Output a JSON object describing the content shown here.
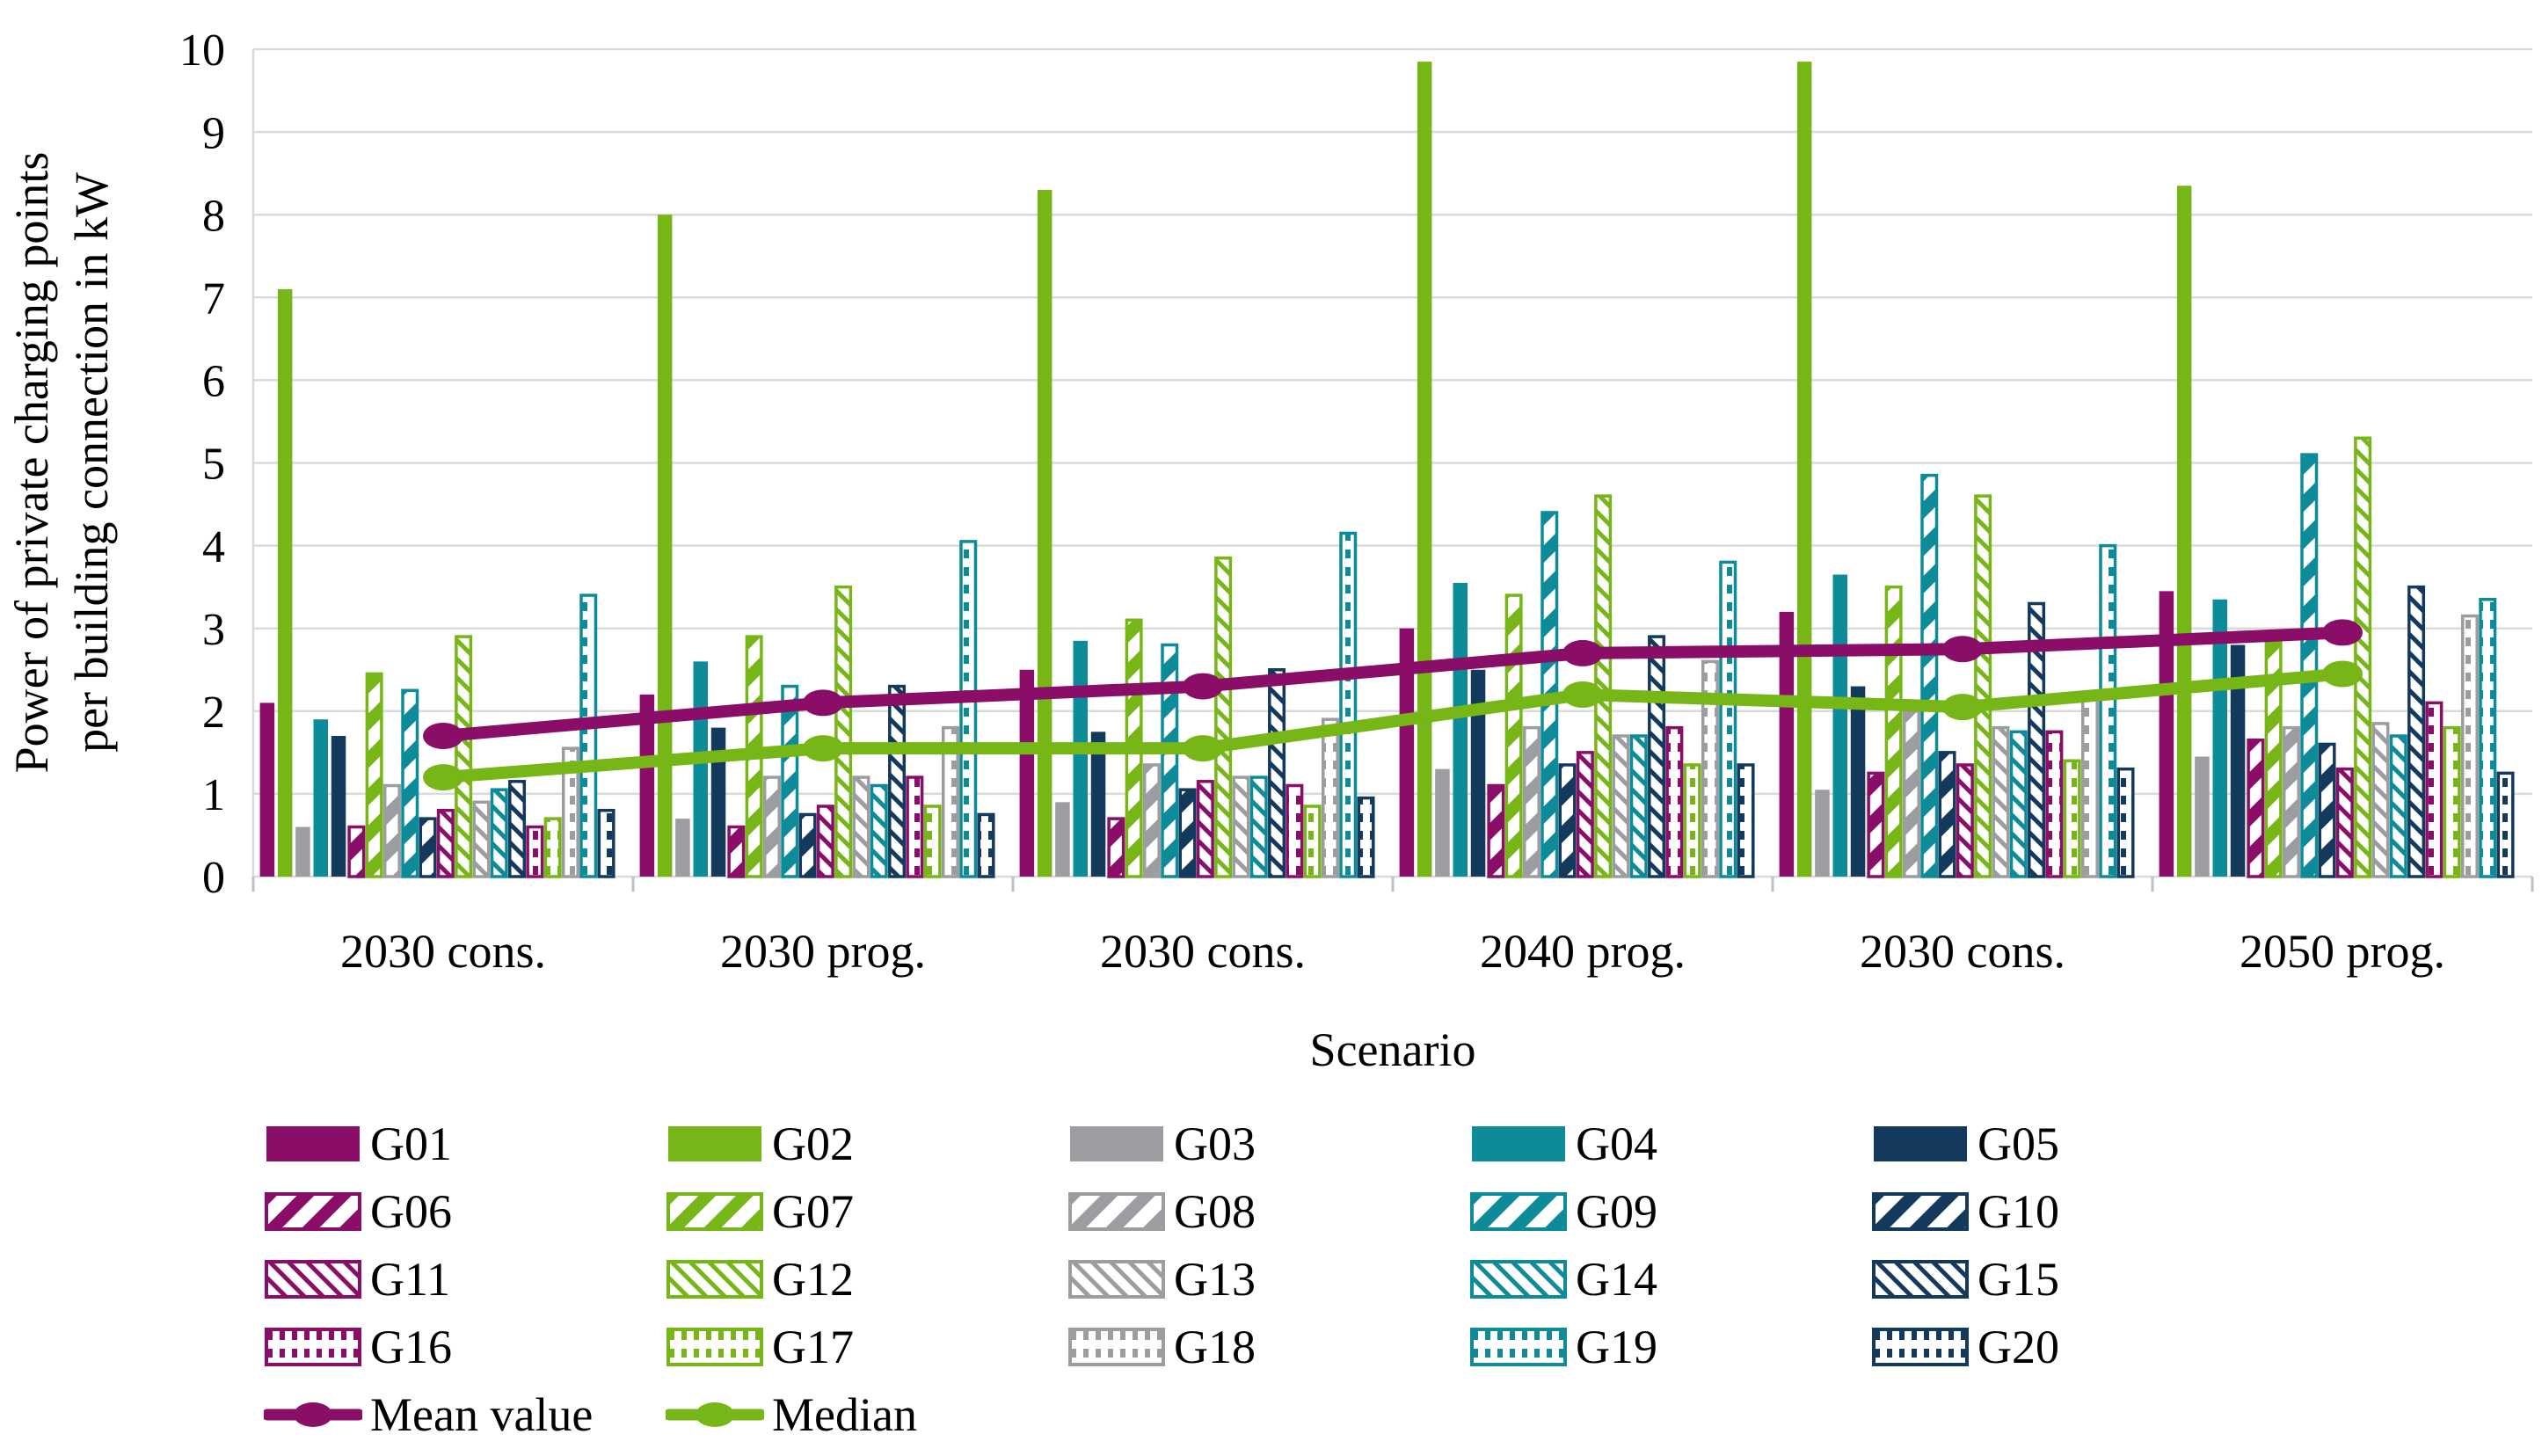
{
  "page": {
    "background": "#FFFFFF"
  },
  "colors": {
    "purple": "#8A0E67",
    "green": "#76B617",
    "gray": "#9B9DA0",
    "teal": "#0E8B99",
    "navy": "#133A5C",
    "grid": "#DADADA",
    "axis": "#BFBFBF",
    "text": "#000000"
  },
  "chart_data": {
    "type": "bar",
    "title": "",
    "xlabel": "Scenario",
    "ylabel_lines": [
      "Power of private charging points",
      "per building connection in kW"
    ],
    "ylim": [
      0,
      10
    ],
    "ytick_step": 1,
    "yticks": [
      0,
      1,
      2,
      3,
      4,
      5,
      6,
      7,
      8,
      9,
      10
    ],
    "grid": true,
    "legend_position": "bottom",
    "categories": [
      "2030 cons.",
      "2030 prog.",
      "2030 cons.",
      "2040 prog.",
      "2030 cons.",
      "2050 prog."
    ],
    "series": [
      {
        "name": "G01",
        "color": "purple",
        "pattern": "solid",
        "values": [
          2.1,
          2.2,
          2.5,
          3.0,
          3.2,
          3.45
        ]
      },
      {
        "name": "G02",
        "color": "green",
        "pattern": "solid",
        "values": [
          7.1,
          8.0,
          8.3,
          9.85,
          9.85,
          8.35
        ]
      },
      {
        "name": "G03",
        "color": "gray",
        "pattern": "solid",
        "values": [
          0.6,
          0.7,
          0.9,
          1.3,
          1.05,
          1.45
        ]
      },
      {
        "name": "G04",
        "color": "teal",
        "pattern": "solid",
        "values": [
          1.9,
          2.6,
          2.85,
          3.55,
          3.65,
          3.35
        ]
      },
      {
        "name": "G05",
        "color": "navy",
        "pattern": "solid",
        "values": [
          1.7,
          1.8,
          1.75,
          2.5,
          2.3,
          2.8
        ]
      },
      {
        "name": "G06",
        "color": "purple",
        "pattern": "hatch",
        "values": [
          0.6,
          0.6,
          0.7,
          1.1,
          1.25,
          1.65
        ]
      },
      {
        "name": "G07",
        "color": "green",
        "pattern": "hatch",
        "values": [
          2.45,
          2.9,
          3.1,
          3.4,
          3.5,
          2.85
        ]
      },
      {
        "name": "G08",
        "color": "gray",
        "pattern": "hatch",
        "values": [
          1.1,
          1.2,
          1.35,
          1.8,
          2.0,
          1.8
        ]
      },
      {
        "name": "G09",
        "color": "teal",
        "pattern": "hatch",
        "values": [
          2.25,
          2.3,
          2.8,
          4.4,
          4.85,
          5.1
        ]
      },
      {
        "name": "G10",
        "color": "navy",
        "pattern": "hatch",
        "values": [
          0.7,
          0.75,
          1.05,
          1.35,
          1.5,
          1.6
        ]
      },
      {
        "name": "G11",
        "color": "purple",
        "pattern": "backdiag",
        "values": [
          0.8,
          0.85,
          1.15,
          1.5,
          1.35,
          1.3
        ]
      },
      {
        "name": "G12",
        "color": "green",
        "pattern": "backdiag",
        "values": [
          2.9,
          3.5,
          3.85,
          4.6,
          4.6,
          5.3
        ]
      },
      {
        "name": "G13",
        "color": "gray",
        "pattern": "backdiag",
        "values": [
          0.9,
          1.2,
          1.2,
          1.7,
          1.8,
          1.85
        ]
      },
      {
        "name": "G14",
        "color": "teal",
        "pattern": "backdiag",
        "values": [
          1.05,
          1.1,
          1.2,
          1.7,
          1.75,
          1.7
        ]
      },
      {
        "name": "G15",
        "color": "navy",
        "pattern": "backdiag",
        "values": [
          1.15,
          2.3,
          2.5,
          2.9,
          3.3,
          3.5
        ]
      },
      {
        "name": "G16",
        "color": "purple",
        "pattern": "dotted",
        "values": [
          0.6,
          1.2,
          1.1,
          1.8,
          1.75,
          2.1
        ]
      },
      {
        "name": "G17",
        "color": "green",
        "pattern": "dotted",
        "values": [
          0.7,
          0.85,
          0.85,
          1.35,
          1.4,
          1.8
        ]
      },
      {
        "name": "G18",
        "color": "gray",
        "pattern": "dotted",
        "values": [
          1.55,
          1.8,
          1.9,
          2.6,
          2.2,
          3.15
        ]
      },
      {
        "name": "G19",
        "color": "teal",
        "pattern": "dotted",
        "values": [
          3.4,
          4.05,
          4.15,
          3.8,
          4.0,
          3.35
        ]
      },
      {
        "name": "G20",
        "color": "navy",
        "pattern": "dotted",
        "values": [
          0.8,
          0.75,
          0.95,
          1.35,
          1.3,
          1.25
        ]
      }
    ],
    "lines": [
      {
        "name": "Mean value",
        "color": "purple",
        "values": [
          1.7,
          2.1,
          2.3,
          2.7,
          2.75,
          2.95
        ]
      },
      {
        "name": "Median",
        "color": "green",
        "values": [
          1.2,
          1.55,
          1.55,
          2.2,
          2.05,
          2.45
        ]
      }
    ]
  }
}
